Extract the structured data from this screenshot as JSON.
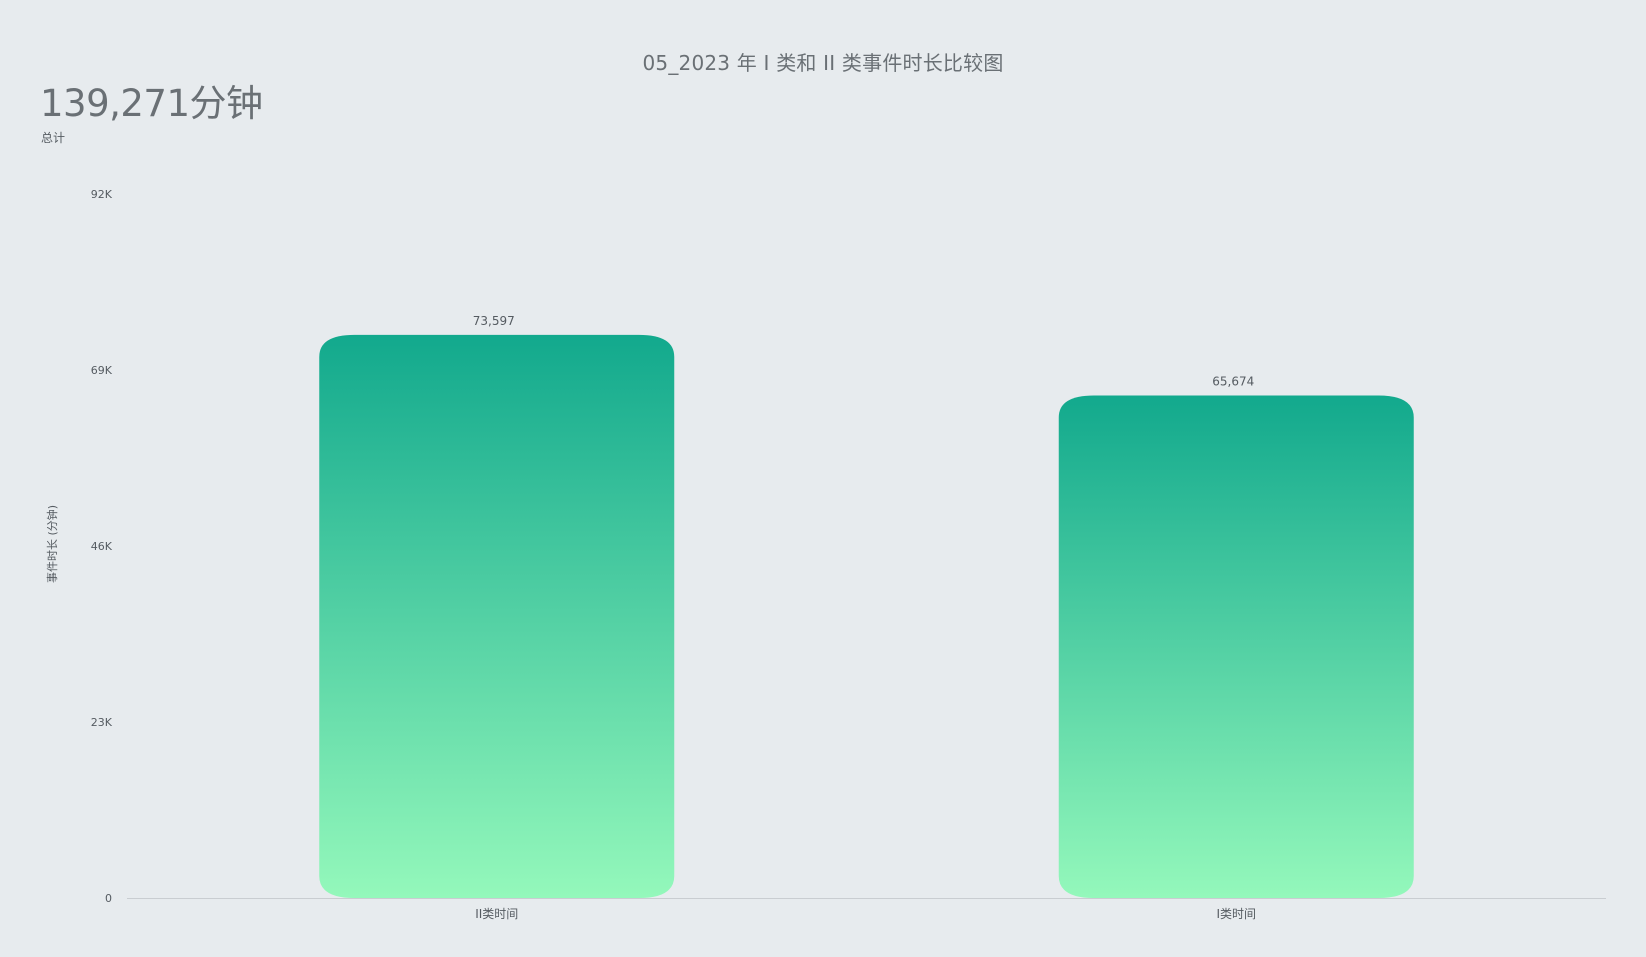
{
  "kpi": {
    "value": "139,271分钟",
    "label": "总计"
  },
  "colors": {
    "background": "#e7ebee",
    "bar_top": "#12a98d",
    "bar_bottom": "#94f8bb",
    "axis_line": "#c9cdd1",
    "text": "#555b61"
  },
  "chart_data": {
    "type": "bar",
    "title": "05_2023 年 I 类和 II 类事件时长比较图",
    "xlabel": "",
    "ylabel": "事件时长 (分钟)",
    "categories": [
      "II类时间",
      "I类时间"
    ],
    "values": [
      73597,
      65674
    ],
    "value_labels": [
      "73,597",
      "65,674"
    ],
    "ylim": [
      0,
      92000
    ],
    "yticks": [
      0,
      23000,
      46000,
      69000,
      92000
    ],
    "ytick_labels": [
      "0",
      "23K",
      "46K",
      "69K",
      "92K"
    ],
    "grid": false,
    "legend": "none"
  }
}
